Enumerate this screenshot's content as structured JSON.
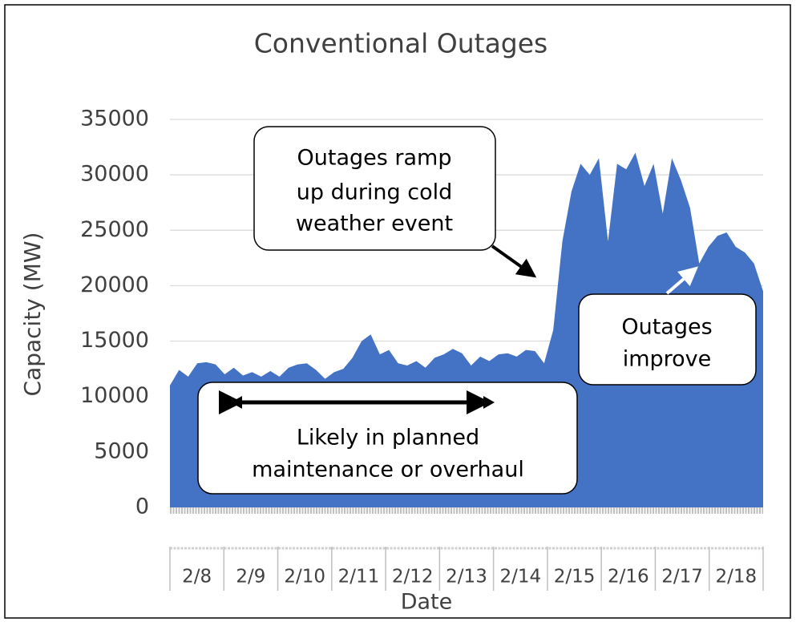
{
  "chart_data": {
    "type": "area",
    "title": "Conventional Outages",
    "y_label": "Capacity (MW)",
    "x_label": "Date",
    "categories": [
      "2/8",
      null,
      null,
      null,
      null,
      null,
      "2/9",
      null,
      null,
      null,
      null,
      null,
      "2/10",
      null,
      null,
      null,
      null,
      null,
      "2/11",
      null,
      null,
      null,
      null,
      null,
      "2/12",
      null,
      null,
      null,
      null,
      null,
      "2/13",
      null,
      null,
      null,
      null,
      null,
      "2/14",
      null,
      null,
      null,
      null,
      null,
      "2/15",
      null,
      null,
      null,
      null,
      null,
      "2/16",
      null,
      null,
      null,
      null,
      null,
      "2/17",
      null,
      null,
      null,
      null,
      null,
      "2/18",
      null,
      null,
      null,
      null,
      null
    ],
    "values": [
      11000,
      12400,
      11800,
      13000,
      13100,
      12900,
      12000,
      12600,
      11900,
      12200,
      11800,
      12300,
      11800,
      12600,
      12900,
      13000,
      12400,
      11600,
      12200,
      12500,
      13500,
      15000,
      15600,
      13800,
      14200,
      13000,
      12800,
      13200,
      12600,
      13500,
      13800,
      14300,
      13900,
      12800,
      13600,
      13200,
      13800,
      13900,
      13600,
      14200,
      14100,
      13000,
      16000,
      24000,
      28500,
      31000,
      30000,
      31500,
      24000,
      31000,
      30500,
      32000,
      29000,
      31000,
      26500,
      31500,
      29500,
      27000,
      22000,
      23500,
      24500,
      24800,
      23500,
      23000,
      22000,
      19500
    ],
    "color": "#4472c4",
    "ylim": [
      0,
      35000
    ],
    "yticks": [
      0,
      5000,
      10000,
      15000,
      20000,
      25000,
      30000,
      35000
    ],
    "grid": true,
    "annotations": [
      {
        "lines": [
          "Outages ramp",
          "up during cold",
          "weather event"
        ]
      },
      {
        "lines": [
          "Outages",
          "improve"
        ]
      },
      {
        "lines": [
          "Likely in planned",
          "maintenance or overhaul"
        ]
      }
    ]
  }
}
